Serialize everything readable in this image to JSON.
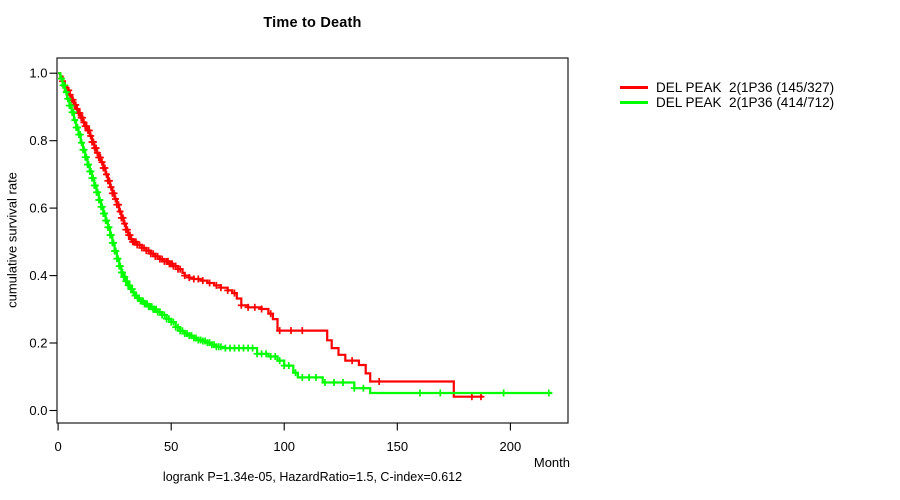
{
  "chart_data": {
    "type": "line",
    "subtype": "kaplan-meier-step",
    "title": "Time to Death",
    "xlabel": "Month",
    "ylabel": "cumulative survival rate",
    "annotation": "logrank P=1.34e-05, HazardRatio=1.5, C-index=0.612",
    "xlim": [
      0,
      225
    ],
    "ylim": [
      0,
      1
    ],
    "x_ticks": [
      0,
      50,
      100,
      150,
      200
    ],
    "y_ticks": [
      0.0,
      0.2,
      0.4,
      0.6,
      0.8,
      1.0
    ],
    "grid": false,
    "legend_position": "right-outside",
    "series": [
      {
        "name": "DEL PEAK  2(1P36 (145/327)",
        "color": "#ff0000",
        "end_month": 188,
        "steps": [
          [
            0,
            1.0
          ],
          [
            1,
            0.99
          ],
          [
            2,
            0.976
          ],
          [
            3,
            0.962
          ],
          [
            4,
            0.949
          ],
          [
            5,
            0.936
          ],
          [
            6,
            0.921
          ],
          [
            7,
            0.906
          ],
          [
            8,
            0.894
          ],
          [
            9,
            0.882
          ],
          [
            10,
            0.868
          ],
          [
            11,
            0.854
          ],
          [
            12,
            0.843
          ],
          [
            13,
            0.83
          ],
          [
            14,
            0.814
          ],
          [
            15,
            0.796
          ],
          [
            16,
            0.778
          ],
          [
            17,
            0.764
          ],
          [
            18,
            0.75
          ],
          [
            19,
            0.736
          ],
          [
            20,
            0.719
          ],
          [
            21,
            0.7
          ],
          [
            22,
            0.681
          ],
          [
            23,
            0.662
          ],
          [
            24,
            0.644
          ],
          [
            25,
            0.627
          ],
          [
            26,
            0.61
          ],
          [
            27,
            0.59
          ],
          [
            28,
            0.571
          ],
          [
            29,
            0.554
          ],
          [
            30,
            0.536
          ],
          [
            31,
            0.52
          ],
          [
            32,
            0.508
          ],
          [
            33,
            0.5
          ],
          [
            35,
            0.491
          ],
          [
            37,
            0.482
          ],
          [
            39,
            0.474
          ],
          [
            41,
            0.465
          ],
          [
            43,
            0.457
          ],
          [
            45,
            0.449
          ],
          [
            47,
            0.442
          ],
          [
            49,
            0.435
          ],
          [
            51,
            0.428
          ],
          [
            53,
            0.419
          ],
          [
            55,
            0.408
          ],
          [
            56,
            0.4
          ],
          [
            58,
            0.394
          ],
          [
            60,
            0.39
          ],
          [
            63,
            0.385
          ],
          [
            66,
            0.378
          ],
          [
            69,
            0.371
          ],
          [
            72,
            0.364
          ],
          [
            75,
            0.356
          ],
          [
            77,
            0.348
          ],
          [
            79,
            0.332
          ],
          [
            81,
            0.312
          ],
          [
            84,
            0.306
          ],
          [
            90,
            0.301
          ],
          [
            93,
            0.287
          ],
          [
            95,
            0.271
          ],
          [
            97,
            0.237
          ],
          [
            119,
            0.208
          ],
          [
            121,
            0.185
          ],
          [
            124,
            0.165
          ],
          [
            127,
            0.148
          ],
          [
            133,
            0.135
          ],
          [
            136,
            0.11
          ],
          [
            138,
            0.086
          ],
          [
            175,
            0.041
          ]
        ],
        "censor_times": [
          2,
          3,
          4,
          4.7,
          5.3,
          6,
          6.6,
          7.2,
          7.8,
          8.4,
          9,
          9.6,
          10.2,
          10.8,
          11.4,
          12,
          12.6,
          13.2,
          13.8,
          14.4,
          15,
          15.6,
          16.2,
          16.8,
          17.4,
          18,
          18.7,
          19.4,
          20,
          20.7,
          21.4,
          22,
          22.7,
          23.4,
          24,
          24.7,
          25.4,
          26,
          26.7,
          27.4,
          28,
          28.7,
          29.4,
          30,
          30.6,
          31.2,
          31.8,
          32.4,
          33,
          33.7,
          34.4,
          35,
          36,
          37,
          38,
          39,
          40,
          41,
          42,
          43,
          44,
          45,
          46,
          47,
          48,
          48.6,
          49.2,
          49.8,
          50.4,
          51,
          52,
          53,
          54,
          56,
          58,
          60,
          62,
          64,
          67,
          70,
          72,
          75,
          78,
          81,
          84,
          87,
          90,
          94,
          98,
          103,
          108,
          130,
          142,
          183,
          187
        ]
      },
      {
        "name": "DEL PEAK  2(1P36 (414/712)",
        "color": "#00ff00",
        "end_month": 218.5,
        "steps": [
          [
            0,
            1.0
          ],
          [
            1,
            0.984
          ],
          [
            2,
            0.964
          ],
          [
            3,
            0.944
          ],
          [
            4,
            0.924
          ],
          [
            5,
            0.904
          ],
          [
            6,
            0.884
          ],
          [
            7,
            0.861
          ],
          [
            8,
            0.839
          ],
          [
            9,
            0.818
          ],
          [
            10,
            0.794
          ],
          [
            11,
            0.773
          ],
          [
            12,
            0.751
          ],
          [
            13,
            0.729
          ],
          [
            14,
            0.709
          ],
          [
            15,
            0.689
          ],
          [
            16,
            0.667
          ],
          [
            17,
            0.647
          ],
          [
            18,
            0.624
          ],
          [
            19,
            0.604
          ],
          [
            20,
            0.584
          ],
          [
            21,
            0.563
          ],
          [
            22,
            0.543
          ],
          [
            23,
            0.52
          ],
          [
            24,
            0.497
          ],
          [
            25,
            0.473
          ],
          [
            26,
            0.45
          ],
          [
            27,
            0.428
          ],
          [
            28,
            0.409
          ],
          [
            29,
            0.396
          ],
          [
            30,
            0.383
          ],
          [
            31,
            0.371
          ],
          [
            32,
            0.36
          ],
          [
            33,
            0.35
          ],
          [
            34,
            0.341
          ],
          [
            35,
            0.333
          ],
          [
            36,
            0.325
          ],
          [
            38,
            0.316
          ],
          [
            40,
            0.308
          ],
          [
            42,
            0.3
          ],
          [
            44,
            0.292
          ],
          [
            46,
            0.283
          ],
          [
            48,
            0.272
          ],
          [
            50,
            0.262
          ],
          [
            52,
            0.247
          ],
          [
            54,
            0.236
          ],
          [
            56,
            0.228
          ],
          [
            58,
            0.222
          ],
          [
            60,
            0.215
          ],
          [
            62,
            0.209
          ],
          [
            64,
            0.206
          ],
          [
            66,
            0.201
          ],
          [
            68,
            0.195
          ],
          [
            70,
            0.189
          ],
          [
            73,
            0.185
          ],
          [
            88,
            0.168
          ],
          [
            93,
            0.16
          ],
          [
            97,
            0.148
          ],
          [
            100,
            0.133
          ],
          [
            104,
            0.112
          ],
          [
            106,
            0.098
          ],
          [
            117,
            0.083
          ],
          [
            131,
            0.066
          ],
          [
            138,
            0.052
          ]
        ],
        "censor_times": [
          1.5,
          2.2,
          2.9,
          3.6,
          4.3,
          5,
          5.6,
          6.2,
          6.8,
          7.4,
          8,
          8.6,
          9.2,
          9.8,
          10.4,
          11,
          11.5,
          12,
          12.5,
          13,
          13.5,
          14,
          14.5,
          15,
          15.5,
          16,
          16.5,
          17,
          17.5,
          18,
          18.5,
          19,
          19.5,
          20,
          20.5,
          21,
          21.5,
          22,
          22.5,
          23,
          23.5,
          24,
          24.5,
          25,
          25.5,
          26,
          26.5,
          27,
          27.5,
          28,
          28.5,
          29,
          29.5,
          30,
          30.5,
          31,
          31.6,
          32.2,
          32.8,
          33.4,
          34,
          34.6,
          35.2,
          35.8,
          36.4,
          37,
          37.6,
          38.2,
          38.8,
          39.4,
          40,
          40.7,
          41.4,
          42,
          42.7,
          43.4,
          44,
          45,
          46,
          47,
          48,
          49,
          50,
          51,
          52,
          53,
          54,
          55,
          56,
          57,
          58,
          59,
          60,
          61,
          62,
          63,
          64,
          65,
          66,
          67,
          68,
          69,
          70,
          71,
          72,
          74,
          76,
          78,
          80,
          82,
          84,
          86,
          88,
          90,
          92,
          94,
          96,
          98,
          100,
          102,
          105,
          108,
          111,
          114,
          118,
          122,
          126,
          131,
          135,
          160,
          169,
          197,
          217
        ]
      }
    ]
  }
}
